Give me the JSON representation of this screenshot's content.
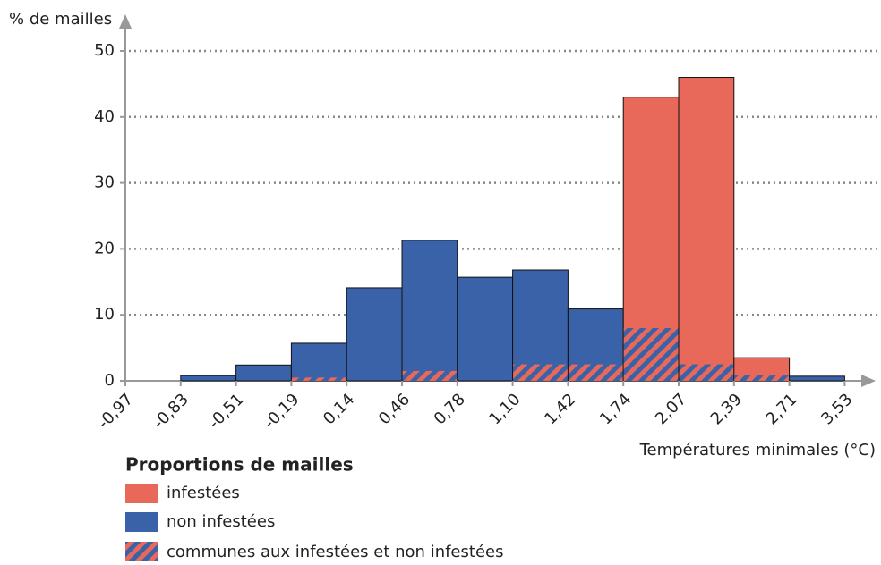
{
  "chart_data": {
    "type": "histogram",
    "ylabel": "% de mailles",
    "xlabel": "Températures minimales (°C)",
    "bin_labels": [
      "-0,97",
      "-0,83",
      "-0,51",
      "-0,19",
      "0,14",
      "0,46",
      "0,78",
      "1,10",
      "1,42",
      "1,74",
      "2,07",
      "2,39",
      "2,71",
      "3,53"
    ],
    "series": [
      {
        "name": "infestées",
        "color": "#e8685a",
        "values": [
          0,
          0,
          0,
          0.5,
          0,
          1.5,
          0,
          2.5,
          2.5,
          43,
          46,
          3.5,
          0
        ]
      },
      {
        "name": "non infestées",
        "color": "#3a62a8",
        "values": [
          0,
          0.8,
          2.4,
          5.7,
          14.1,
          21.3,
          15.7,
          16.8,
          10.9,
          8,
          2.5,
          0.8,
          0.7
        ]
      }
    ],
    "legend_title": "Proportions de mailles",
    "common_label": "communes aux infestées et non infestées",
    "ylim": [
      0,
      50
    ],
    "yticks": [
      0,
      10,
      20,
      30,
      40,
      50
    ],
    "grid": true
  }
}
